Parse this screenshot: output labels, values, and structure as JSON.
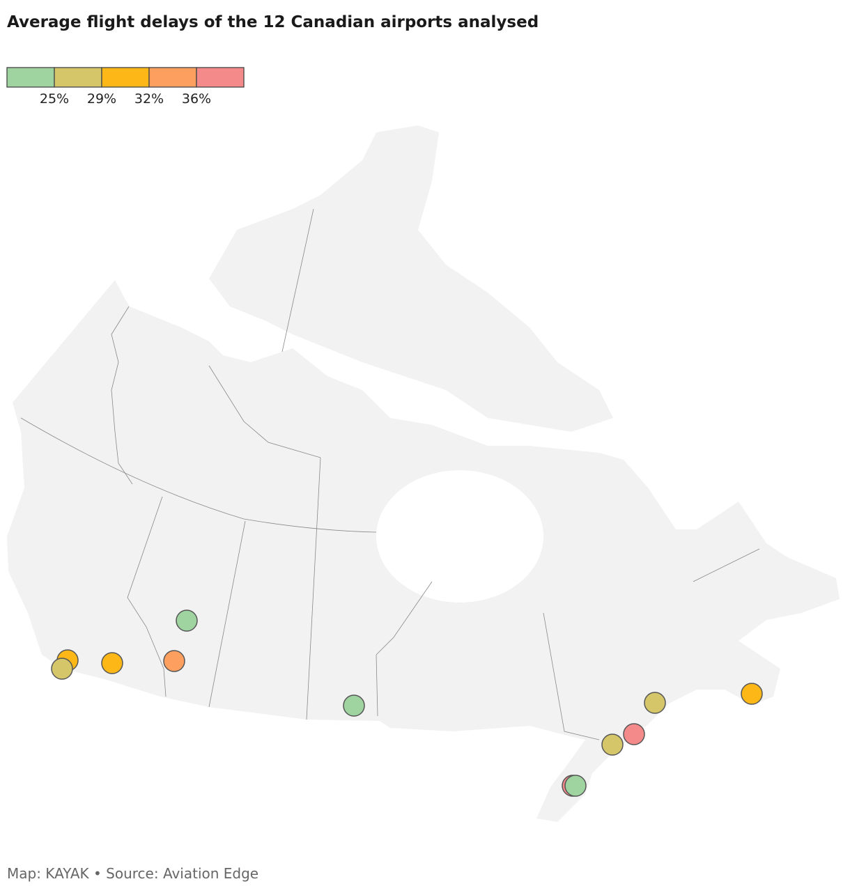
{
  "title": "Average flight delays of the 12 Canadian airports analysed",
  "legend": {
    "colors": [
      "#9fd4a0",
      "#d6c66a",
      "#fdb818",
      "#fd9f5f",
      "#f48a8a"
    ],
    "ticks": [
      {
        "value": 25,
        "label": "25%"
      },
      {
        "value": 29,
        "label": "29%"
      },
      {
        "value": 32,
        "label": "32%"
      },
      {
        "value": 36,
        "label": "36%"
      }
    ]
  },
  "values": [
    31,
    27,
    31,
    34,
    23,
    23,
    38,
    23,
    27,
    38,
    27,
    31
  ],
  "footer": "Map: KAYAK • Source: Aviation Edge"
}
